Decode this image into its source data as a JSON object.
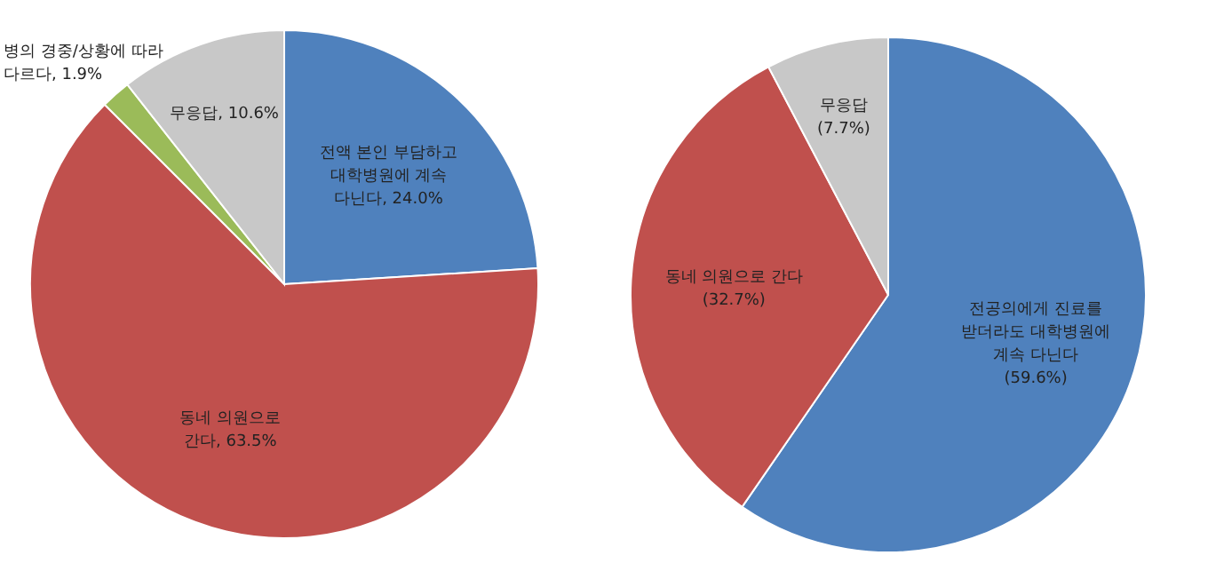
{
  "chart_data": [
    {
      "type": "pie",
      "categories": [
        "전액 본인 부담하고 대학병원에 계속 다닌다",
        "동네 의원으로 간다",
        "병의 경중/상황에 따라 다르다",
        "무응답"
      ],
      "values": [
        24.0,
        63.5,
        1.9,
        10.6
      ],
      "value_labels": [
        "24.0%",
        "63.5%",
        "1.9%",
        "10.6%"
      ],
      "colors": [
        "#4f81bd",
        "#c0504d",
        "#9bbb59",
        "#c8c8c8"
      ]
    },
    {
      "type": "pie",
      "categories": [
        "전공의에게 진료를 받더라도 대학병원에 계속 다닌다",
        "동네 의원으로 간다",
        "무응답"
      ],
      "values": [
        59.6,
        32.7,
        7.7
      ],
      "value_labels": [
        "(59.6%)",
        "(32.7%)",
        "(7.7%)"
      ],
      "colors": [
        "#4f81bd",
        "#c0504d",
        "#c8c8c8"
      ]
    }
  ]
}
